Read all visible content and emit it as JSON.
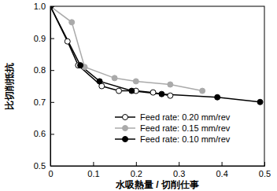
{
  "chart_data": {
    "type": "line",
    "x_label": "水吸熱量 / 切削仕事",
    "y_label": "比切削抵抗",
    "xlim": [
      0,
      0.5
    ],
    "ylim": [
      0.5,
      1.0
    ],
    "xticks": [
      0,
      0.1,
      0.2,
      0.3,
      0.4,
      0.5
    ],
    "yticks": [
      0.5,
      0.6,
      0.7,
      0.8,
      0.9,
      {
        "value": 1.0,
        "label": "1.0"
      }
    ],
    "legend": "lower right",
    "series": [
      {
        "name": "Feed rate: 0.20 mm/rev",
        "color": "#000000",
        "marker": "circle-open",
        "x": [
          0,
          0.04,
          0.065,
          0.12,
          0.16,
          0.2,
          0.24,
          0.28
        ],
        "values": [
          1.0,
          0.89,
          0.815,
          0.75,
          0.735,
          0.735,
          0.73,
          0.72
        ]
      },
      {
        "name": "Feed rate: 0.15 mm/rev",
        "color": "#aaaaaa",
        "marker": "circle",
        "x": [
          0,
          0.05,
          0.08,
          0.15,
          0.2,
          0.28,
          0.355
        ],
        "values": [
          1.0,
          0.95,
          0.81,
          0.775,
          0.765,
          0.755,
          0.735
        ]
      },
      {
        "name": "Feed rate: 0.10 mm/rev",
        "color": "#000000",
        "marker": "circle",
        "x": [
          0,
          0.07,
          0.115,
          0.19,
          0.26,
          0.39,
          0.49
        ],
        "values": [
          1.0,
          0.815,
          0.765,
          0.735,
          0.725,
          0.715,
          0.7
        ]
      }
    ]
  }
}
